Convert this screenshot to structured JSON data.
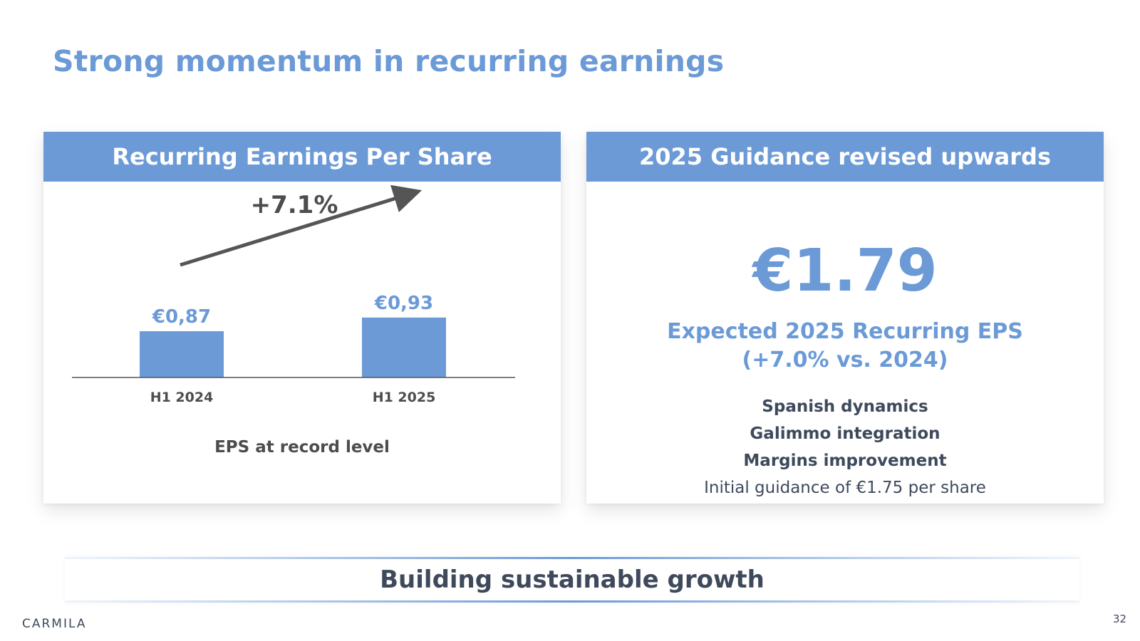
{
  "title": "Strong momentum in recurring earnings",
  "left_panel": {
    "header": "Recurring Earnings Per Share",
    "caption": "EPS at record level"
  },
  "chart_data": {
    "type": "bar",
    "categories": [
      "H1 2024",
      "H1 2025"
    ],
    "values": [
      0.87,
      0.93
    ],
    "data_labels": [
      "€0,87",
      "€0,93"
    ],
    "growth_label": "+7.1%",
    "title": "Recurring Earnings Per Share",
    "xlabel": "",
    "ylabel": "",
    "bar_color": "#6b9ad7",
    "grid": false
  },
  "right_panel": {
    "header": "2025 Guidance revised upwards",
    "big_value": "€1.79",
    "expected_line1": "Expected 2025 Recurring EPS",
    "expected_line2": "(+7.0% vs. 2024)",
    "drivers": [
      "Spanish dynamics",
      "Galimmo integration",
      "Margins improvement"
    ],
    "initial_guidance": "Initial guidance of €1.75 per share"
  },
  "banner": "Building sustainable growth",
  "logo": "CARMILA",
  "page_number": "32",
  "colors": {
    "accent": "#6b9ad7",
    "text_dark": "#3e4a5c",
    "text_grey": "#4d4d4d"
  }
}
